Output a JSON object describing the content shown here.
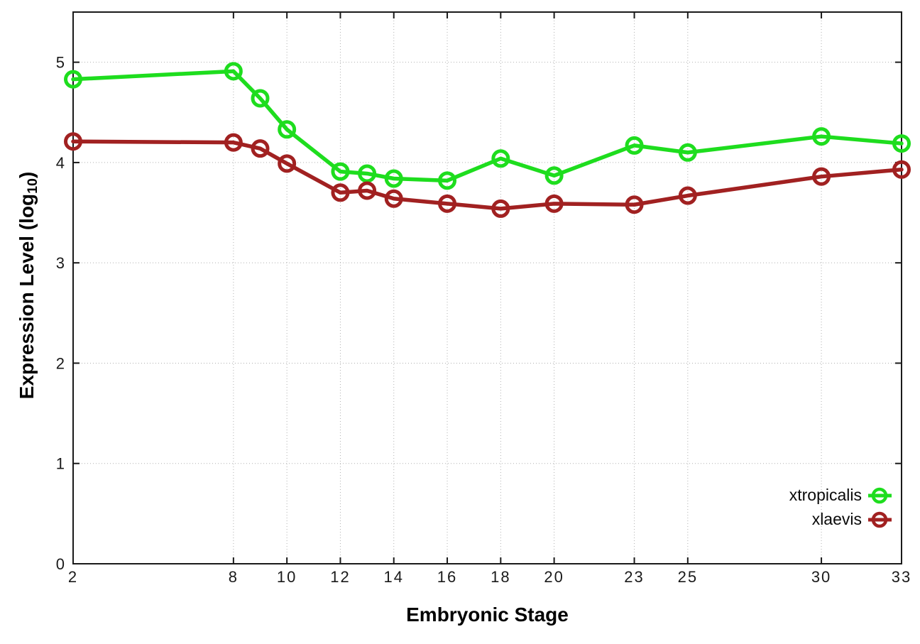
{
  "chart_data": {
    "type": "line",
    "title": "",
    "xlabel": "Embryonic Stage",
    "ylabel": {
      "prefix": "Expression Level (log",
      "sub": "10",
      "suffix": ")"
    },
    "xlim": [
      2,
      33
    ],
    "ylim": [
      0,
      5.5
    ],
    "grid": true,
    "legend_position": "inside-bottom-right",
    "x_ticks": [
      {
        "value": 2,
        "label": "2"
      },
      {
        "value": 8,
        "label": "8"
      },
      {
        "value": 10,
        "label": "10"
      },
      {
        "value": 12,
        "label": "12"
      },
      {
        "value": 14,
        "label": "14"
      },
      {
        "value": 16,
        "label": "16"
      },
      {
        "value": 18,
        "label": "18"
      },
      {
        "value": 20,
        "label": "20"
      },
      {
        "value": 23,
        "label": "23"
      },
      {
        "value": 25,
        "label": "25"
      },
      {
        "value": 30,
        "label": "30"
      },
      {
        "value": 33,
        "label": "33"
      }
    ],
    "y_ticks": [
      {
        "value": 0,
        "label": "0"
      },
      {
        "value": 1,
        "label": "1"
      },
      {
        "value": 2,
        "label": "2"
      },
      {
        "value": 3,
        "label": "3"
      },
      {
        "value": 4,
        "label": "4"
      },
      {
        "value": 5,
        "label": "5"
      }
    ],
    "x": [
      2,
      8,
      9,
      10,
      12,
      13,
      14,
      16,
      18,
      20,
      23,
      25,
      30,
      33
    ],
    "series": [
      {
        "name": "xtropicalis",
        "color": "#1edd1e",
        "marker": "open-circle",
        "values": [
          4.83,
          4.91,
          4.64,
          4.33,
          3.91,
          3.89,
          3.84,
          3.82,
          4.04,
          3.87,
          4.17,
          4.1,
          4.26,
          4.19
        ]
      },
      {
        "name": "xlaevis",
        "color": "#a12121",
        "marker": "open-circle",
        "values": [
          4.21,
          4.2,
          4.14,
          3.99,
          3.7,
          3.72,
          3.64,
          3.59,
          3.54,
          3.59,
          3.58,
          3.67,
          3.86,
          3.93
        ]
      }
    ],
    "colors": {
      "axis": "#1a1a1a",
      "grid": "#b0b0b0",
      "background": "#ffffff",
      "tick_label": "#1a1a1a"
    }
  }
}
